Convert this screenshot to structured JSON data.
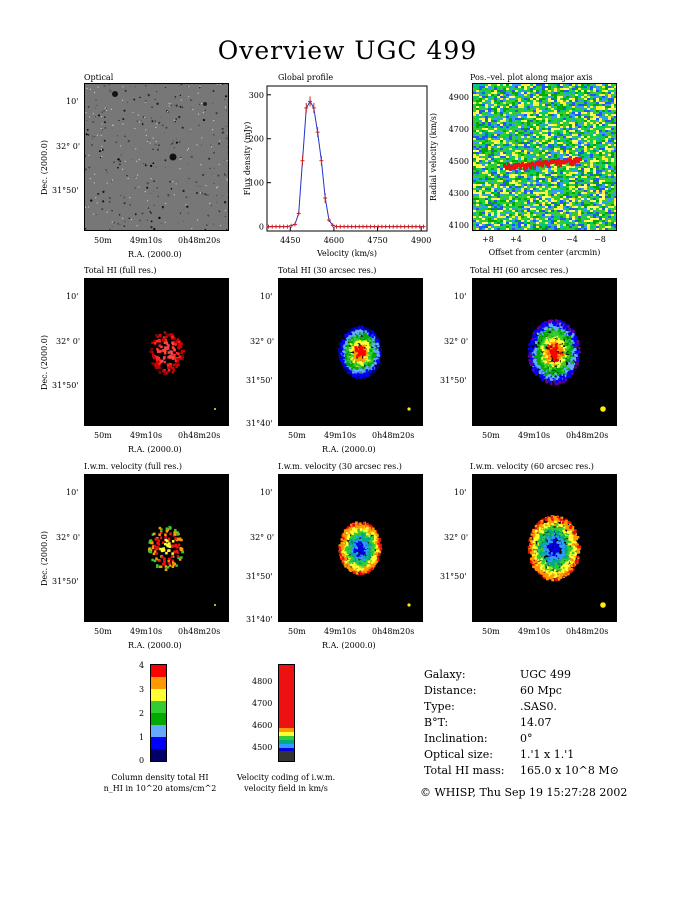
{
  "title": "Overview UGC 499",
  "panels": {
    "optical": {
      "title": "Optical",
      "ylabel": "Dec. (2000.0)",
      "xlabel": "R.A. (2000.0)",
      "yticks": [
        "10'",
        "32° 0'",
        "31°50'"
      ],
      "xticks": [
        "50m",
        "49m10s",
        "0h48m20s"
      ]
    },
    "global_profile": {
      "title": "Global profile"
    },
    "pv": {
      "title": "Pos.–vel. plot along major axis"
    },
    "hi_full": {
      "title": "Total HI (full res.)",
      "ylabel": "Dec. (2000.0)",
      "xlabel": "R.A. (2000.0)",
      "yticks": [
        "10'",
        "32° 0'",
        "31°50'"
      ],
      "xticks": [
        "50m",
        "49m10s",
        "0h48m20s"
      ]
    },
    "hi_30": {
      "title": "Total HI (30 arcsec res.)",
      "xlabel": "R.A. (2000.0)",
      "yticks": [
        "10'",
        "32° 0'",
        "31°50'",
        "31°40'"
      ],
      "xticks": [
        "50m",
        "49m10s",
        "0h48m20s"
      ]
    },
    "hi_60": {
      "title": "Total HI (60 arcsec res.)",
      "yticks": [
        "10'",
        "32° 0'",
        "31°50'"
      ],
      "xticks": [
        "50m",
        "49m10s",
        "0h48m20s"
      ]
    },
    "vel_full": {
      "title": "I.w.m. velocity (full res.)",
      "ylabel": "Dec. (2000.0)",
      "xlabel": "R.A. (2000.0)",
      "yticks": [
        "10'",
        "32° 0'",
        "31°50'"
      ],
      "xticks": [
        "50m",
        "49m10s",
        "0h48m20s"
      ]
    },
    "vel_30": {
      "title": "I.w.m. velocity (30 arcsec res.)",
      "xlabel": "R.A. (2000.0)",
      "yticks": [
        "10'",
        "32° 0'",
        "31°50'",
        "31°40'"
      ],
      "xticks": [
        "50m",
        "49m10s",
        "0h48m20s"
      ]
    },
    "vel_60": {
      "title": "I.w.m. velocity (60 arcsec res.)",
      "yticks": [
        "10'",
        "32° 0'",
        "31°50'"
      ],
      "xticks": [
        "50m",
        "49m10s",
        "0h48m20s"
      ]
    }
  },
  "chart_data": [
    {
      "type": "line",
      "title": "Global profile",
      "xlabel": "Velocity (km/s)",
      "ylabel": "Flux density (mJy)",
      "xlim": [
        4370,
        4920
      ],
      "ylim": [
        -10,
        320
      ],
      "xticks": [
        4450,
        4600,
        4750,
        4900
      ],
      "yticks": [
        0,
        100,
        200,
        300
      ],
      "x": [
        4375,
        4388,
        4401,
        4414,
        4427,
        4440,
        4453,
        4466,
        4479,
        4492,
        4505,
        4518,
        4531,
        4544,
        4557,
        4570,
        4583,
        4596,
        4609,
        4622,
        4635,
        4648,
        4661,
        4674,
        4687,
        4700,
        4713,
        4726,
        4739,
        4752,
        4765,
        4778,
        4791,
        4804,
        4817,
        4830,
        4843,
        4856,
        4869,
        4882,
        4895,
        4908
      ],
      "series": [
        {
          "values": [
            0,
            0,
            0,
            0,
            0,
            0,
            2,
            5,
            30,
            150,
            270,
            285,
            270,
            215,
            150,
            65,
            15,
            3,
            0,
            0,
            0,
            0,
            0,
            0,
            0,
            0,
            0,
            0,
            0,
            0,
            0,
            0,
            0,
            0,
            0,
            0,
            0,
            0,
            0,
            0,
            0,
            0
          ]
        }
      ]
    },
    {
      "type": "heatmap",
      "title": "Pos.–vel. plot along major axis",
      "xlabel": "Offset from center (arcmin)",
      "ylabel": "Radial velocity (km/s)",
      "xticks": [
        "+8",
        "+4",
        "0",
        "−4",
        "−8"
      ],
      "yticks": [
        4100,
        4300,
        4500,
        4700,
        4900
      ]
    }
  ],
  "colorbars": {
    "column_density": {
      "ticks": [
        "4",
        "3",
        "2",
        "1",
        "0"
      ],
      "caption1": "Column density total HI",
      "caption2": "n_HI in 10^20 atoms/cm^2",
      "colors": [
        "#ff0000",
        "#ff9900",
        "#ffff33",
        "#33cc33",
        "#00aa00",
        "#66aaff",
        "#0000ff",
        "#000066"
      ]
    },
    "velocity": {
      "ticks": [
        "4800",
        "4700",
        "4600",
        "4500"
      ],
      "caption1": "Velocity coding of i.w.m.",
      "caption2": "velocity field in km/s"
    }
  },
  "info": [
    {
      "label": "Galaxy:",
      "value": "UGC 499"
    },
    {
      "label": "Distance:",
      "value": "60 Mpc"
    },
    {
      "label": "Type:",
      "value": ".SAS0."
    },
    {
      "label": "B°T:",
      "value": "14.07"
    },
    {
      "label": "Inclination:",
      "value": "0°"
    },
    {
      "label": "Optical size:",
      "value": "1.'1 x 1.'1"
    },
    {
      "label": "Total HI mass:",
      "value": "165.0 x 10^8 M⊙"
    }
  ],
  "footer": "© WHISP, Thu Sep 19 15:27:28 2002"
}
